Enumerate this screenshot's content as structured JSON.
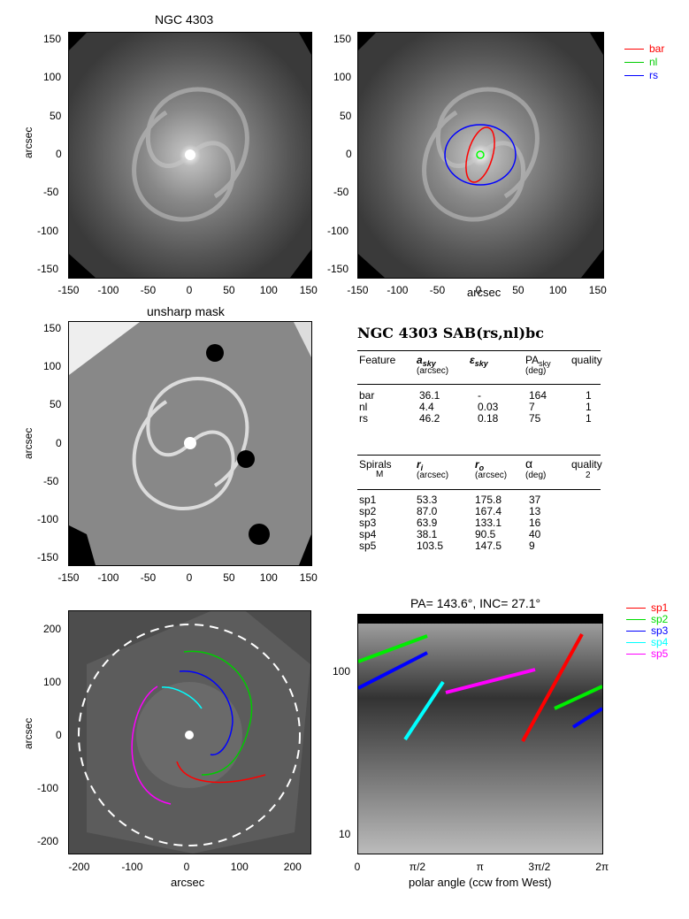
{
  "panels": {
    "top_left": {
      "title": "NGC 4303",
      "ylabel": "arcsec"
    },
    "top_right": {
      "xlabel": "arcsec",
      "legend": [
        {
          "name": "bar",
          "color": "#ff0000"
        },
        {
          "name": "nl",
          "color": "#00cc00"
        },
        {
          "name": "rs",
          "color": "#0000ff"
        }
      ]
    },
    "mid_left": {
      "title": "unsharp mask",
      "ylabel": "arcsec"
    },
    "bot_left": {
      "xlabel": "arcsec",
      "ylabel": "arcsec"
    },
    "bot_right": {
      "title": "PA= 143.6°, INC= 27.1°",
      "xlabel": "polar angle (ccw from West)",
      "legend": [
        {
          "name": "sp1",
          "color": "#ff0000"
        },
        {
          "name": "sp2",
          "color": "#00dd00"
        },
        {
          "name": "sp3",
          "color": "#0000ff"
        },
        {
          "name": "sp4",
          "color": "#00ffff"
        },
        {
          "name": "sp5",
          "color": "#ff00ff"
        }
      ]
    }
  },
  "ticks": {
    "img150_x": [
      "-150",
      "-100",
      "-50",
      "0",
      "50",
      "100",
      "150"
    ],
    "img150_y": [
      "150",
      "100",
      "50",
      "0",
      "-50",
      "-100",
      "-150"
    ],
    "img200_x": [
      "-200",
      "-100",
      "0",
      "100",
      "200"
    ],
    "img200_y": [
      "200",
      "100",
      "0",
      "-100",
      "-200"
    ],
    "polar_x": [
      "0",
      "π/2",
      "π",
      "3π/2",
      "2π"
    ],
    "polar_y": [
      "100",
      "10"
    ]
  },
  "table": {
    "title": "NGC 4303  SAB(rs,nl)bc",
    "features_header": [
      "Feature",
      "a",
      "sky",
      "(arcsec)",
      "ε",
      "sky",
      "PA",
      "sky",
      "(deg)",
      "quality"
    ],
    "features": [
      {
        "name": "bar",
        "a": "36.1",
        "eps": "-",
        "pa": "164",
        "q": "1"
      },
      {
        "name": "nl",
        "a": "4.4",
        "eps": "0.03",
        "pa": "7",
        "q": "1"
      },
      {
        "name": "rs",
        "a": "46.2",
        "eps": "0.18",
        "pa": "75",
        "q": "1"
      }
    ],
    "spirals_header": [
      "Spirals",
      "M",
      "r",
      "i",
      "(arcsec)",
      "r",
      "o",
      "(arcsec)",
      "α",
      "(deg)",
      "quality",
      "2"
    ],
    "spirals": [
      {
        "name": "sp1",
        "ri": "53.3",
        "ro": "175.8",
        "alpha": "37"
      },
      {
        "name": "sp2",
        "ri": "87.0",
        "ro": "167.4",
        "alpha": "13"
      },
      {
        "name": "sp3",
        "ri": "63.9",
        "ro": "133.1",
        "alpha": "16"
      },
      {
        "name": "sp4",
        "ri": "38.1",
        "ro": "90.5",
        "alpha": "40"
      },
      {
        "name": "sp5",
        "ri": "103.5",
        "ro": "147.5",
        "alpha": "9"
      }
    ]
  }
}
